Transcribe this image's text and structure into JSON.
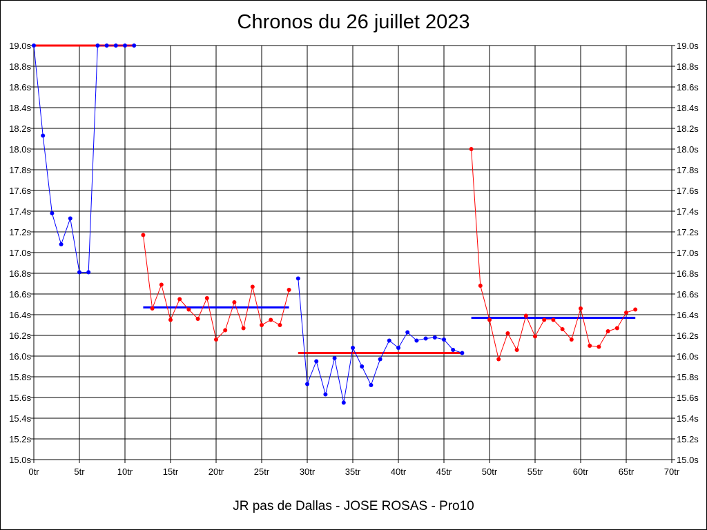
{
  "chart_data": {
    "type": "line",
    "title": "Chronos du 26 juillet 2023",
    "xlabel": "JR pas de Dallas - JOSE ROSAS - Pro10",
    "ylabel": "",
    "xlim": [
      0,
      70
    ],
    "ylim": [
      15.0,
      19.0
    ],
    "x_ticks": [
      0,
      5,
      10,
      15,
      20,
      25,
      30,
      35,
      40,
      45,
      50,
      55,
      60,
      65,
      70
    ],
    "x_tick_labels": [
      "0tr",
      "5tr",
      "10tr",
      "15tr",
      "20tr",
      "25tr",
      "30tr",
      "35tr",
      "40tr",
      "45tr",
      "50tr",
      "55tr",
      "60tr",
      "65tr",
      "70tr"
    ],
    "y_ticks": [
      15.0,
      15.2,
      15.4,
      15.6,
      15.8,
      16.0,
      16.2,
      16.4,
      16.6,
      16.8,
      17.0,
      17.2,
      17.4,
      17.6,
      17.8,
      18.0,
      18.2,
      18.4,
      18.6,
      18.8,
      19.0
    ],
    "y_tick_labels": [
      "15.0s",
      "15.2s",
      "15.4s",
      "15.6s",
      "15.8s",
      "16.0s",
      "16.2s",
      "16.4s",
      "16.6s",
      "16.8s",
      "17.0s",
      "17.2s",
      "17.4s",
      "17.6s",
      "17.8s",
      "18.0s",
      "18.2s",
      "18.4s",
      "18.6s",
      "18.8s",
      "19.0s"
    ],
    "grid": true,
    "colors": {
      "blue": "#0000ff",
      "red": "#ff0000"
    },
    "series": [
      {
        "color": "#0000ff",
        "points": [
          [
            0,
            19.0
          ],
          [
            1,
            18.13
          ],
          [
            2,
            17.38
          ],
          [
            3,
            17.08
          ],
          [
            4,
            17.33
          ],
          [
            5,
            16.81
          ],
          [
            6,
            16.81
          ],
          [
            7,
            19.0
          ],
          [
            8,
            19.0
          ],
          [
            9,
            19.0
          ],
          [
            10,
            19.0
          ],
          [
            11,
            19.0
          ]
        ]
      },
      {
        "color": "#ff0000",
        "points": [
          [
            12,
            17.17
          ],
          [
            13,
            16.46
          ],
          [
            14,
            16.69
          ],
          [
            15,
            16.35
          ],
          [
            16,
            16.55
          ],
          [
            17,
            16.45
          ],
          [
            18,
            16.36
          ],
          [
            19,
            16.56
          ],
          [
            20,
            16.16
          ],
          [
            21,
            16.25
          ],
          [
            22,
            16.52
          ],
          [
            23,
            16.27
          ],
          [
            24,
            16.67
          ],
          [
            25,
            16.3
          ],
          [
            26,
            16.35
          ],
          [
            27,
            16.3
          ],
          [
            28,
            16.64
          ]
        ]
      },
      {
        "color": "#0000ff",
        "points": [
          [
            29,
            16.75
          ],
          [
            30,
            15.73
          ],
          [
            31,
            15.95
          ],
          [
            32,
            15.63
          ],
          [
            33,
            15.98
          ],
          [
            34,
            15.55
          ],
          [
            35,
            16.08
          ],
          [
            36,
            15.9
          ],
          [
            37,
            15.72
          ],
          [
            38,
            15.97
          ],
          [
            39,
            16.15
          ],
          [
            40,
            16.08
          ],
          [
            41,
            16.23
          ],
          [
            42,
            16.15
          ],
          [
            43,
            16.17
          ],
          [
            44,
            16.18
          ],
          [
            45,
            16.16
          ],
          [
            46,
            16.06
          ],
          [
            47,
            16.03
          ]
        ]
      },
      {
        "color": "#ff0000",
        "points": [
          [
            48,
            18.0
          ],
          [
            49,
            16.68
          ],
          [
            50,
            16.35
          ],
          [
            51,
            15.97
          ],
          [
            52,
            16.22
          ],
          [
            53,
            16.06
          ],
          [
            54,
            16.39
          ],
          [
            55,
            16.19
          ],
          [
            56,
            16.35
          ],
          [
            57,
            16.35
          ],
          [
            58,
            16.26
          ],
          [
            59,
            16.16
          ],
          [
            60,
            16.46
          ],
          [
            61,
            16.1
          ],
          [
            62,
            16.09
          ],
          [
            63,
            16.24
          ],
          [
            64,
            16.27
          ],
          [
            65,
            16.42
          ],
          [
            66,
            16.45
          ]
        ]
      }
    ],
    "average_lines": [
      {
        "color": "#ff0000",
        "x": [
          0,
          11
        ],
        "y": 19.0
      },
      {
        "color": "#0000ff",
        "x": [
          12,
          28
        ],
        "y": 16.47
      },
      {
        "color": "#ff0000",
        "x": [
          29,
          47
        ],
        "y": 16.03
      },
      {
        "color": "#0000ff",
        "x": [
          48,
          66
        ],
        "y": 16.37
      }
    ]
  }
}
